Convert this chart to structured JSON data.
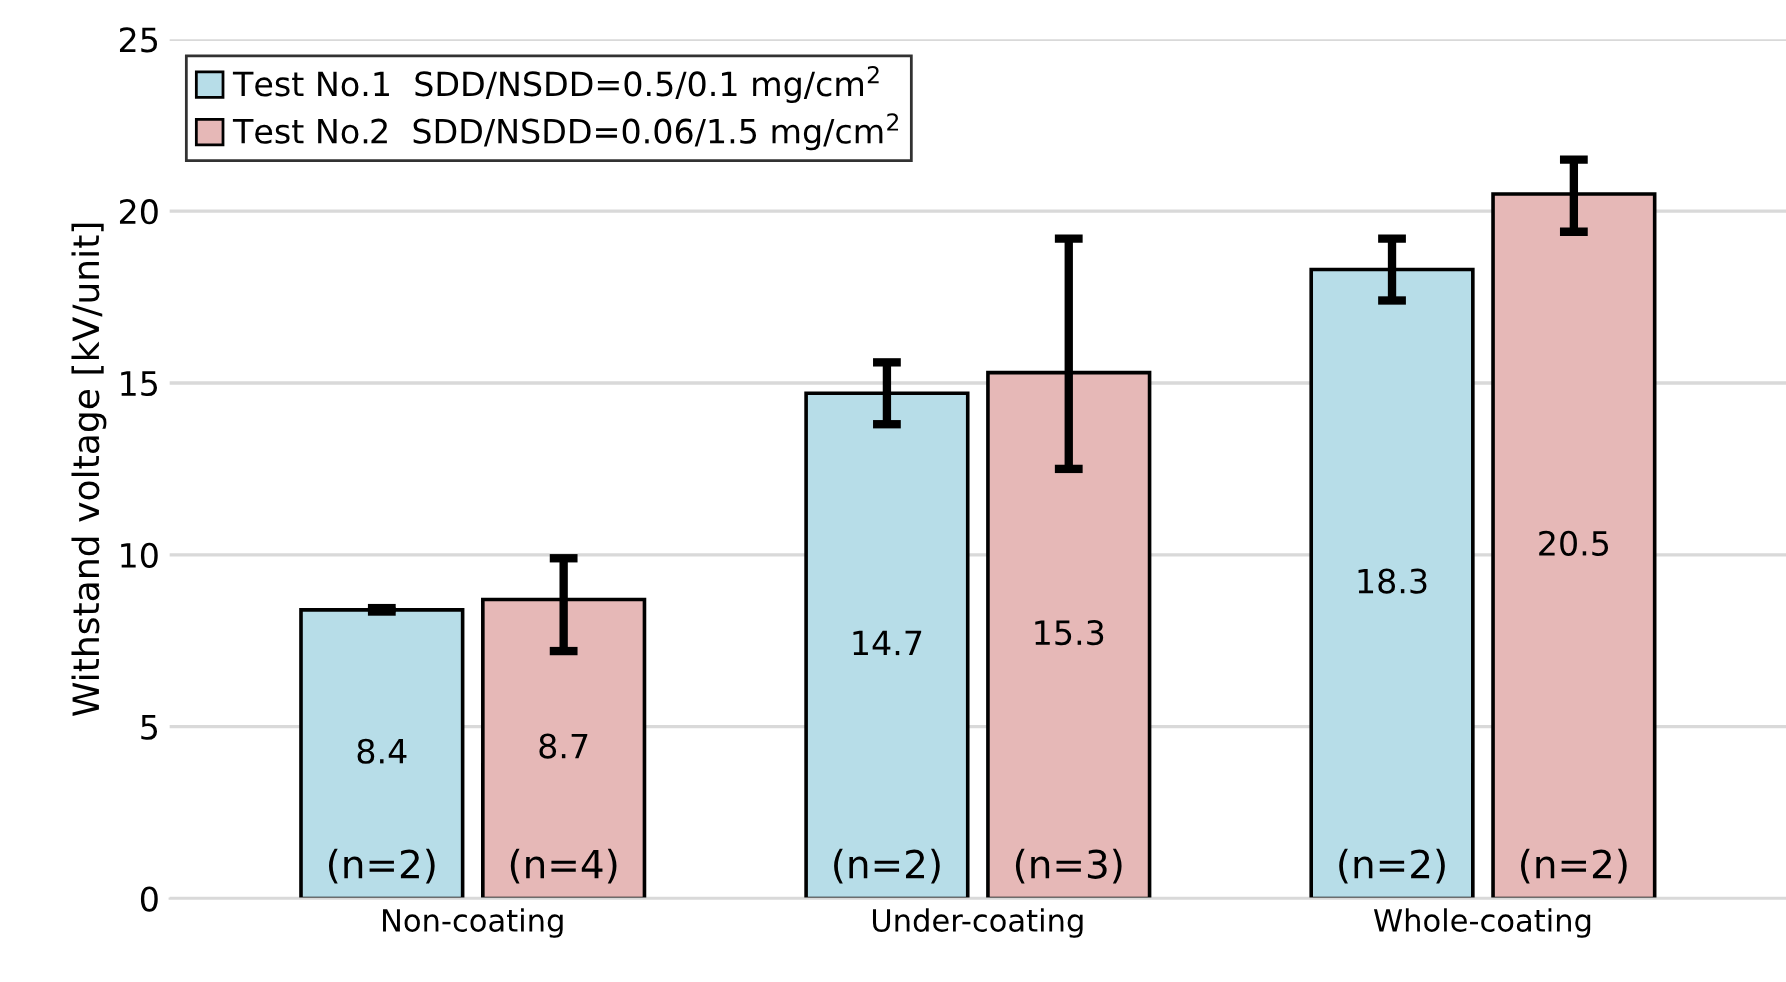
{
  "chart_data": {
    "type": "bar",
    "ylabel": "Withstand voltage [kV/unit]",
    "categories": [
      "Non-coating",
      "Under-coating",
      "Whole-coating"
    ],
    "series": [
      {
        "name": "Test No.1  SDD/NSDD=0.5/0.1 mg/cm$^{2}$",
        "color": "#b7dde8",
        "values": [
          8.4,
          14.7,
          18.3
        ],
        "errors": [
          [
            8.35,
            8.45
          ],
          [
            13.8,
            15.6
          ],
          [
            17.4,
            19.2
          ]
        ]
      },
      {
        "name": "Test No.2  SDD/NSDD=0.06/1.5 mg/cm$^{2}$",
        "color": "#e6b8b7",
        "values": [
          8.7,
          15.3,
          20.5
        ],
        "errors": [
          [
            7.2,
            9.9
          ],
          [
            12.5,
            19.2
          ],
          [
            19.4,
            21.5
          ]
        ]
      }
    ],
    "data_labels": true,
    "annotations": [
      "(n=2)",
      "(n=2)",
      "(n=2)",
      "(n=4)",
      "(n=3)",
      "(n=2)"
    ],
    "ylim": [
      0,
      25
    ],
    "yticks": [
      0,
      5,
      10,
      15,
      20,
      25
    ],
    "grid": "y",
    "legend": "top left"
  }
}
